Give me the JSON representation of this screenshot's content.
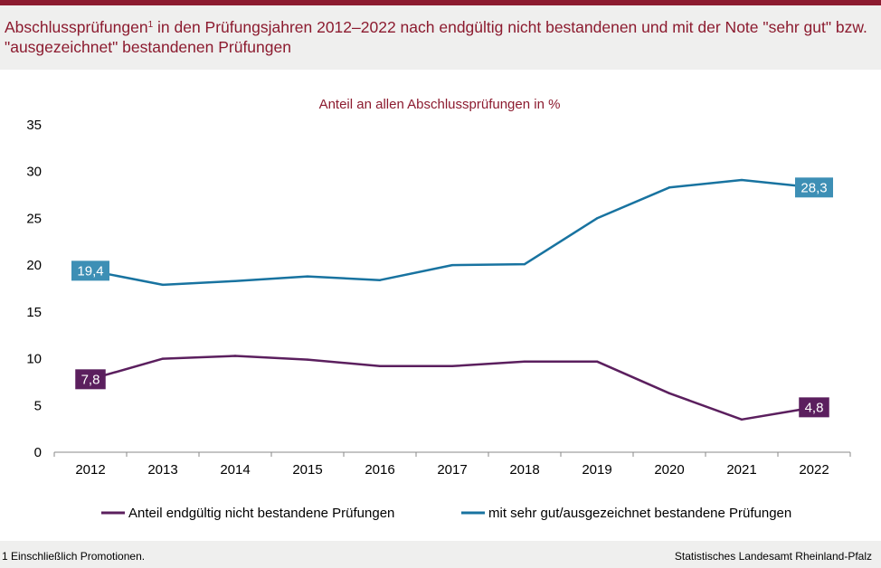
{
  "header": {
    "title_main": "Abschlussprüfungen",
    "title_marker": "1",
    "title_rest": " in den Prüfungsjahren 2012–2022 nach endgültig nicht bestandenen und mit der Note \"sehr gut\" bzw. \"ausgezeichnet\" bestandenen Prüfungen"
  },
  "colors": {
    "accent": "#8c1b2f",
    "series_fail": "#5b1f5e",
    "series_excellent": "#1873a0",
    "label_fail_bg": "#5b1f5e",
    "label_excellent_bg": "#3d8fb5"
  },
  "chart_data": {
    "type": "line",
    "title": "Anteil an allen Abschlussprüfungen  in %",
    "xlabel": "",
    "ylabel": "",
    "categories": [
      "2012",
      "2013",
      "2014",
      "2015",
      "2016",
      "2017",
      "2018",
      "2019",
      "2020",
      "2021",
      "2022"
    ],
    "ylim": [
      0,
      35
    ],
    "yticks": [
      "0",
      "5",
      "10",
      "15",
      "20",
      "25",
      "30",
      "35"
    ],
    "grid": false,
    "legend_position": "bottom",
    "series": [
      {
        "name": "Anteil endgültig nicht bestandene Prüfungen",
        "values": [
          7.8,
          10.0,
          10.3,
          9.9,
          9.2,
          9.2,
          9.7,
          9.7,
          6.3,
          3.5,
          4.8
        ],
        "labels": [
          "7,8",
          null,
          null,
          null,
          null,
          null,
          null,
          null,
          null,
          null,
          "4,8"
        ]
      },
      {
        "name": "mit sehr gut/ausgezeichnet bestandene Prüfungen",
        "values": [
          19.4,
          17.9,
          18.3,
          18.8,
          18.4,
          20.0,
          20.1,
          25.0,
          28.3,
          29.1,
          28.3
        ],
        "labels": [
          "19,4",
          null,
          null,
          null,
          null,
          null,
          null,
          null,
          null,
          null,
          "28,3"
        ]
      }
    ]
  },
  "footer": {
    "footnote": "1 Einschließlich Promotionen.",
    "source": "Statistisches Landesamt  Rheinland-Pfalz"
  }
}
